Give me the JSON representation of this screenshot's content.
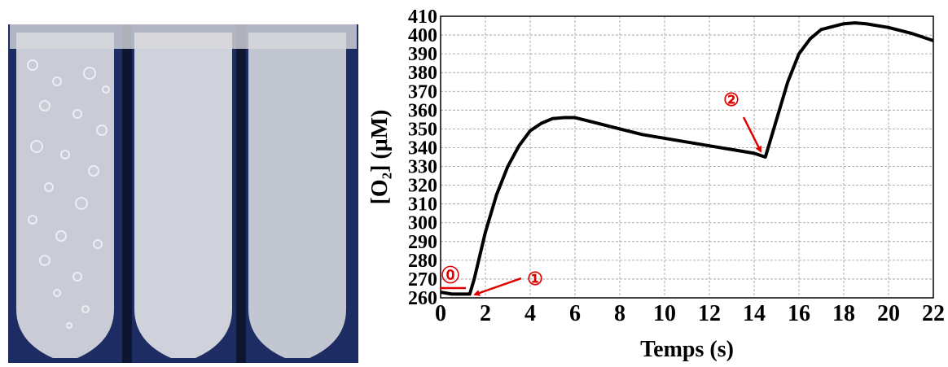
{
  "chart_data": {
    "type": "line",
    "xlabel": "Temps (s)",
    "ylabel": "[O₂] (μM)",
    "x": [
      0,
      0.5,
      1,
      1.3,
      1.5,
      2,
      2.5,
      3,
      3.5,
      4,
      4.5,
      5,
      5.5,
      6,
      7,
      8,
      9,
      10,
      11,
      12,
      13,
      14,
      14.5,
      15,
      15.5,
      16,
      16.5,
      17,
      18,
      18.5,
      19,
      20,
      21,
      22
    ],
    "series": [
      {
        "color": "#000000",
        "values": [
          263,
          262,
          262,
          262,
          270,
          295,
          315,
          330,
          341,
          349,
          353,
          355.5,
          356,
          356,
          353,
          350,
          347,
          345,
          343,
          341,
          339,
          337,
          335,
          355,
          375,
          390,
          398,
          403,
          406,
          406.5,
          406,
          404,
          401,
          397
        ]
      }
    ],
    "xlim": [
      0,
      22
    ],
    "xticks": [
      0,
      2,
      4,
      6,
      8,
      10,
      12,
      14,
      16,
      18,
      20,
      22
    ],
    "ylim": [
      260,
      410
    ],
    "yticks": [
      260,
      270,
      280,
      290,
      300,
      310,
      320,
      330,
      340,
      350,
      360,
      370,
      380,
      390,
      400,
      410
    ],
    "grid": true,
    "annotations": [
      {
        "text": "⓪",
        "color": "#e00000"
      },
      {
        "text": "①",
        "color": "#e00000"
      },
      {
        "text": "②",
        "color": "#e00000"
      }
    ]
  }
}
